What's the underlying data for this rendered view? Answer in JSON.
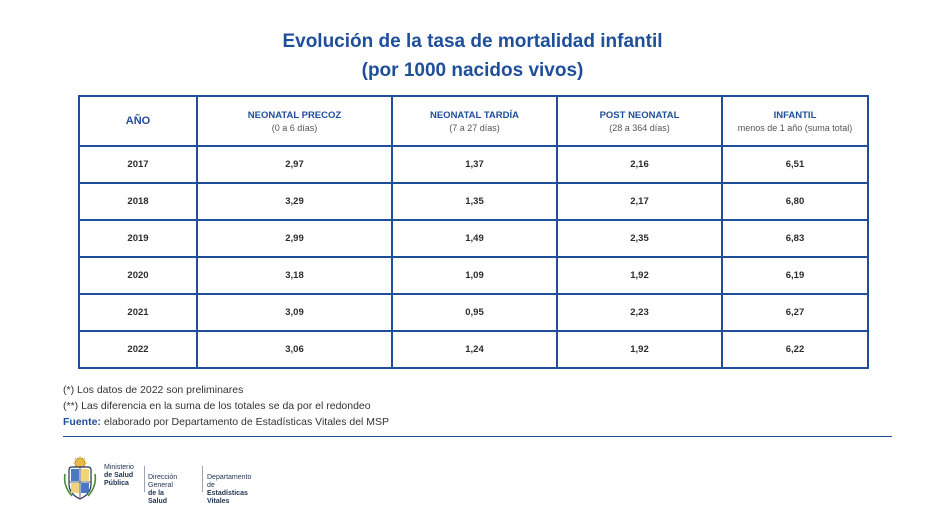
{
  "title": {
    "line1": "Evolución de la tasa de mortalidad infantil",
    "line2": "(por 1000 nacidos vivos)"
  },
  "table": {
    "headers": [
      {
        "label": "AÑO",
        "sub": ""
      },
      {
        "label": "NEONATAL PRECOZ",
        "sub": "(0 a 6 días)"
      },
      {
        "label": "NEONATAL TARDÍA",
        "sub": "(7 a 27 días)"
      },
      {
        "label": "POST NEONATAL",
        "sub": "(28 a 364 días)"
      },
      {
        "label": "INFANTIL",
        "sub": "menos de 1 año (suma total)"
      }
    ],
    "rows": [
      [
        "2017",
        "2,97",
        "1,37",
        "2,16",
        "6,51"
      ],
      [
        "2018",
        "3,29",
        "1,35",
        "2,17",
        "6,80"
      ],
      [
        "2019",
        "2,99",
        "1,49",
        "2,35",
        "6,83"
      ],
      [
        "2020",
        "3,18",
        "1,09",
        "1,92",
        "6,19"
      ],
      [
        "2021",
        "3,09",
        "0,95",
        "2,23",
        "6,27"
      ],
      [
        "2022",
        "3,06",
        "1,24",
        "1,92",
        "6,22"
      ]
    ]
  },
  "notes": {
    "note1": "(*) Los datos de 2022 son preliminares",
    "note2": "(**) Las diferencia en la suma de los totales se da por el redondeo",
    "source_label": "Fuente:",
    "source_text": " elaborado por Departamento de Estadísticas Vitales del MSP"
  },
  "footer": {
    "org1_line1": "Ministerio",
    "org1_line2": "de Salud",
    "org1_line3": "Pública",
    "org2_line1": "Dirección General",
    "org2_line2": "de la Salud",
    "org3_line1": "Departamento de",
    "org3_line2": "Estadísticas Vitales"
  },
  "colors": {
    "brand_blue": "#1f4e9a"
  },
  "icons": {
    "seal": "uruguay-coat-of-arms-icon"
  }
}
